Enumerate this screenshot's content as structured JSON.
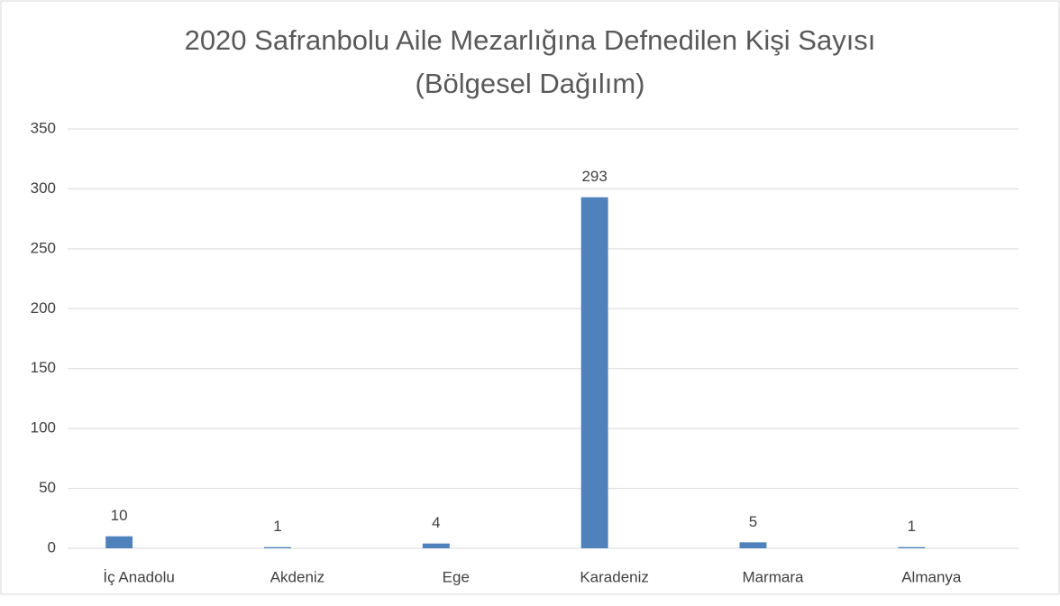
{
  "chart_data": {
    "type": "bar",
    "title": [
      "2020 Safranbolu Aile Mezarlığına Defnedilen Kişi Sayısı",
      "(Bölgesel Dağılım)"
    ],
    "categories": [
      "İç Anadolu",
      "Akdeniz",
      "Ege",
      "Karadeniz",
      "Marmara",
      "Almanya"
    ],
    "values": [
      10,
      1,
      4,
      293,
      5,
      1
    ],
    "color": "#4f81bd",
    "ylim": [
      0,
      350
    ],
    "yticks": [
      0,
      50,
      100,
      150,
      200,
      250,
      300,
      350
    ],
    "grid": true
  }
}
